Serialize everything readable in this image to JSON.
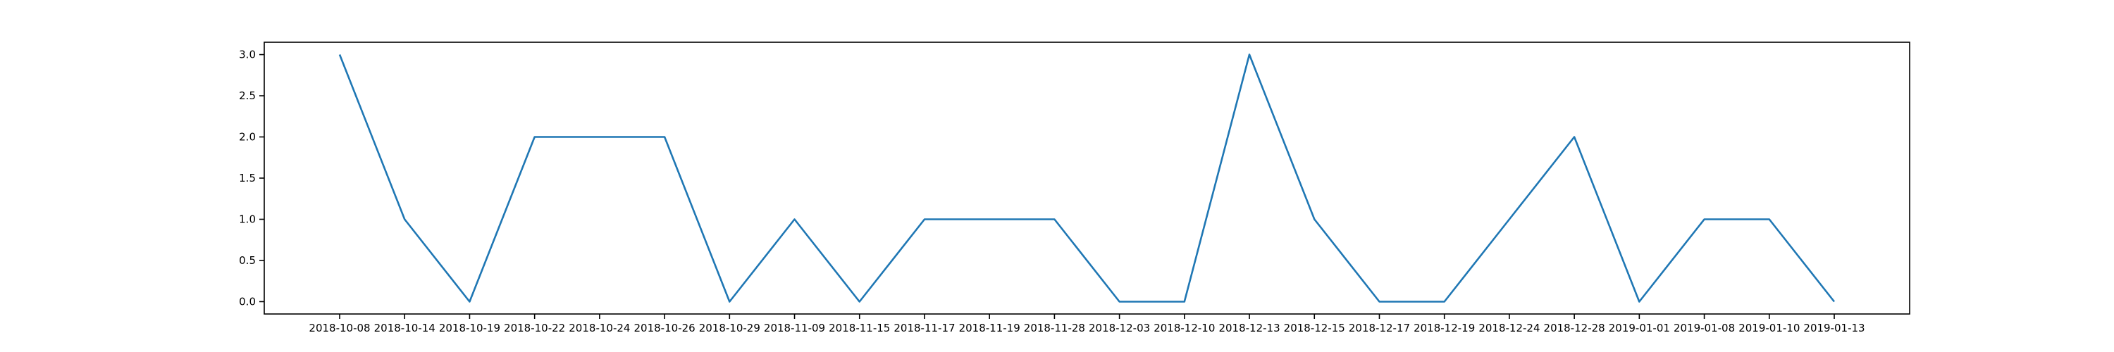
{
  "chart_data": {
    "type": "line",
    "title": "",
    "xlabel": "",
    "ylabel": "",
    "categories": [
      "2018-10-08",
      "2018-10-14",
      "2018-10-19",
      "2018-10-22",
      "2018-10-24",
      "2018-10-26",
      "2018-10-29",
      "2018-11-09",
      "2018-11-15",
      "2018-11-17",
      "2018-11-19",
      "2018-11-28",
      "2018-12-03",
      "2018-12-10",
      "2018-12-13",
      "2018-12-15",
      "2018-12-17",
      "2018-12-19",
      "2018-12-24",
      "2018-12-28",
      "2019-01-01",
      "2019-01-08",
      "2019-01-10",
      "2019-01-13"
    ],
    "values": [
      3,
      1,
      0,
      2,
      2,
      2,
      0,
      1,
      0,
      1,
      1,
      1,
      0,
      0,
      3,
      1,
      0,
      0,
      1,
      2,
      0,
      1,
      1,
      0
    ],
    "ylim": [
      -0.15,
      3.15
    ],
    "yticks": [
      "0.0",
      "0.5",
      "1.0",
      "1.5",
      "2.0",
      "2.5",
      "3.0"
    ],
    "grid": false,
    "legend": "none",
    "line_color": "#1f77b4"
  }
}
